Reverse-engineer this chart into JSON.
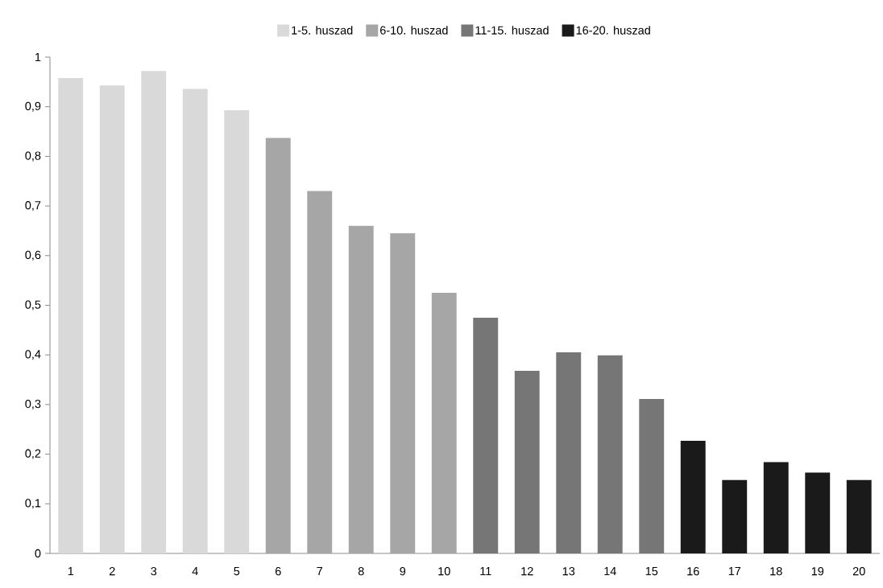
{
  "chart_data": {
    "type": "bar",
    "categories": [
      "1",
      "2",
      "3",
      "4",
      "5",
      "6",
      "7",
      "8",
      "9",
      "10",
      "11",
      "12",
      "13",
      "14",
      "15",
      "16",
      "17",
      "18",
      "19",
      "20"
    ],
    "series": [
      {
        "name": "1-5. huszad",
        "color": "#d9d9d9",
        "values": [
          0.958,
          0.943,
          0.972,
          0.936,
          0.893,
          null,
          null,
          null,
          null,
          null,
          null,
          null,
          null,
          null,
          null,
          null,
          null,
          null,
          null,
          null
        ]
      },
      {
        "name": "6-10. huszad",
        "color": "#a6a6a6",
        "values": [
          null,
          null,
          null,
          null,
          null,
          0.837,
          0.73,
          0.66,
          0.645,
          0.525,
          null,
          null,
          null,
          null,
          null,
          null,
          null,
          null,
          null,
          null
        ]
      },
      {
        "name": "11-15. huszad",
        "color": "#767676",
        "values": [
          null,
          null,
          null,
          null,
          null,
          null,
          null,
          null,
          null,
          null,
          0.475,
          0.368,
          0.405,
          0.399,
          0.311,
          null,
          null,
          null,
          null,
          null
        ]
      },
      {
        "name": "16-20. huszad",
        "color": "#1a1a1a",
        "values": [
          null,
          null,
          null,
          null,
          null,
          null,
          null,
          null,
          null,
          null,
          null,
          null,
          null,
          null,
          null,
          0.227,
          0.148,
          0.184,
          0.163,
          0.148
        ]
      }
    ],
    "ylim": [
      0,
      1
    ],
    "yticks": [
      0,
      {
        "value": 0.1,
        "label": "0,1"
      },
      {
        "value": 0.2,
        "label": "0,2"
      },
      {
        "value": 0.3,
        "label": "0,3"
      },
      {
        "value": 0.4,
        "label": "0,4"
      },
      {
        "value": 0.5,
        "label": "0,5"
      },
      {
        "value": 0.6,
        "label": "0,6"
      },
      {
        "value": 0.7,
        "label": "0,7"
      },
      {
        "value": 0.8,
        "label": "0,8"
      },
      {
        "value": 0.9,
        "label": "0,9"
      },
      1
    ],
    "legend": "top",
    "grid": false
  }
}
